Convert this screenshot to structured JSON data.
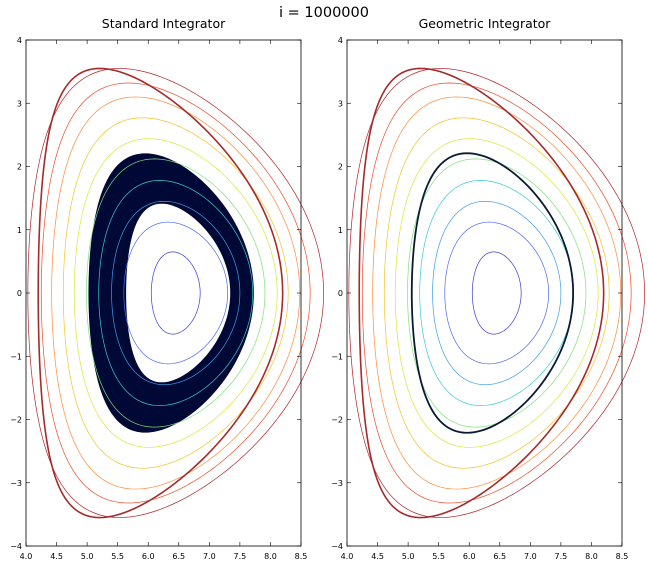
{
  "figure": {
    "suptitle": "i = 1000000"
  },
  "chart_data": [
    {
      "type": "line",
      "title": "Standard Integrator",
      "xlabel": "",
      "ylabel": "",
      "xlim": [
        4.0,
        8.5
      ],
      "ylim": [
        -4,
        4
      ],
      "xticks": [
        "4.0",
        "4.5",
        "5.0",
        "5.5",
        "6.0",
        "6.5",
        "7.0",
        "7.5",
        "8.0",
        "8.5"
      ],
      "yticks": [
        "4",
        "3",
        "2",
        "1",
        "0",
        "−1",
        "−2",
        "−3",
        "−4"
      ],
      "grid": false,
      "contours": {
        "center": [
          6.45,
          0.0
        ],
        "half_widths": [
          0.4,
          0.85,
          1.05,
          1.26,
          1.46,
          1.66,
          1.84,
          2.03,
          2.2,
          2.42
        ],
        "heights": [
          0.65,
          1.12,
          1.45,
          1.78,
          2.12,
          2.44,
          2.77,
          3.1,
          3.32,
          3.55
        ],
        "colors": [
          "#3b3bd6",
          "#4f6af2",
          "#3c9ee6",
          "#39c9d4",
          "#7ee07a",
          "#d7e83a",
          "#f2c42a",
          "#ff8a3d",
          "#ee4b2b",
          "#b2242c"
        ]
      },
      "separatrix": {
        "x_min": 4.2,
        "x_max": 8.2,
        "y_max": 3.55,
        "y_min": -3.55,
        "color": "#a52a2a"
      },
      "orbit_band": {
        "outer": {
          "left": 5.03,
          "right": 7.72,
          "top": 2.2,
          "bottom": -2.22
        },
        "inner": {
          "left": 5.63,
          "right": 7.35,
          "top": 1.42,
          "bottom": -1.42
        },
        "color": "#000835"
      }
    },
    {
      "type": "line",
      "title": "Geometric Integrator",
      "xlabel": "",
      "ylabel": "",
      "xlim": [
        4.0,
        8.5
      ],
      "ylim": [
        -4,
        4
      ],
      "xticks": [
        "4.0",
        "4.5",
        "5.0",
        "5.5",
        "6.0",
        "6.5",
        "7.0",
        "7.5",
        "8.0",
        "8.5"
      ],
      "yticks": [
        "4",
        "3",
        "2",
        "1",
        "0",
        "−1",
        "−2",
        "−3",
        "−4"
      ],
      "grid": false,
      "contours": {
        "center": [
          6.45,
          0.0
        ],
        "half_widths": [
          0.4,
          0.85,
          1.05,
          1.26,
          1.46,
          1.66,
          1.84,
          2.03,
          2.2,
          2.42
        ],
        "heights": [
          0.65,
          1.12,
          1.45,
          1.78,
          2.12,
          2.44,
          2.77,
          3.1,
          3.32,
          3.55
        ],
        "colors": [
          "#3b3bd6",
          "#4f6af2",
          "#3c9ee6",
          "#39c9d4",
          "#7ee07a",
          "#d7e83a",
          "#f2c42a",
          "#ff8a3d",
          "#ee4b2b",
          "#b2242c"
        ]
      },
      "separatrix": {
        "x_min": 4.2,
        "x_max": 8.2,
        "y_max": 3.55,
        "y_min": -3.55,
        "color": "#a52a2a"
      },
      "orbit_line": {
        "left": 5.06,
        "right": 7.7,
        "top": 2.21,
        "bottom": -2.22,
        "color": "#0a1a33"
      }
    }
  ]
}
